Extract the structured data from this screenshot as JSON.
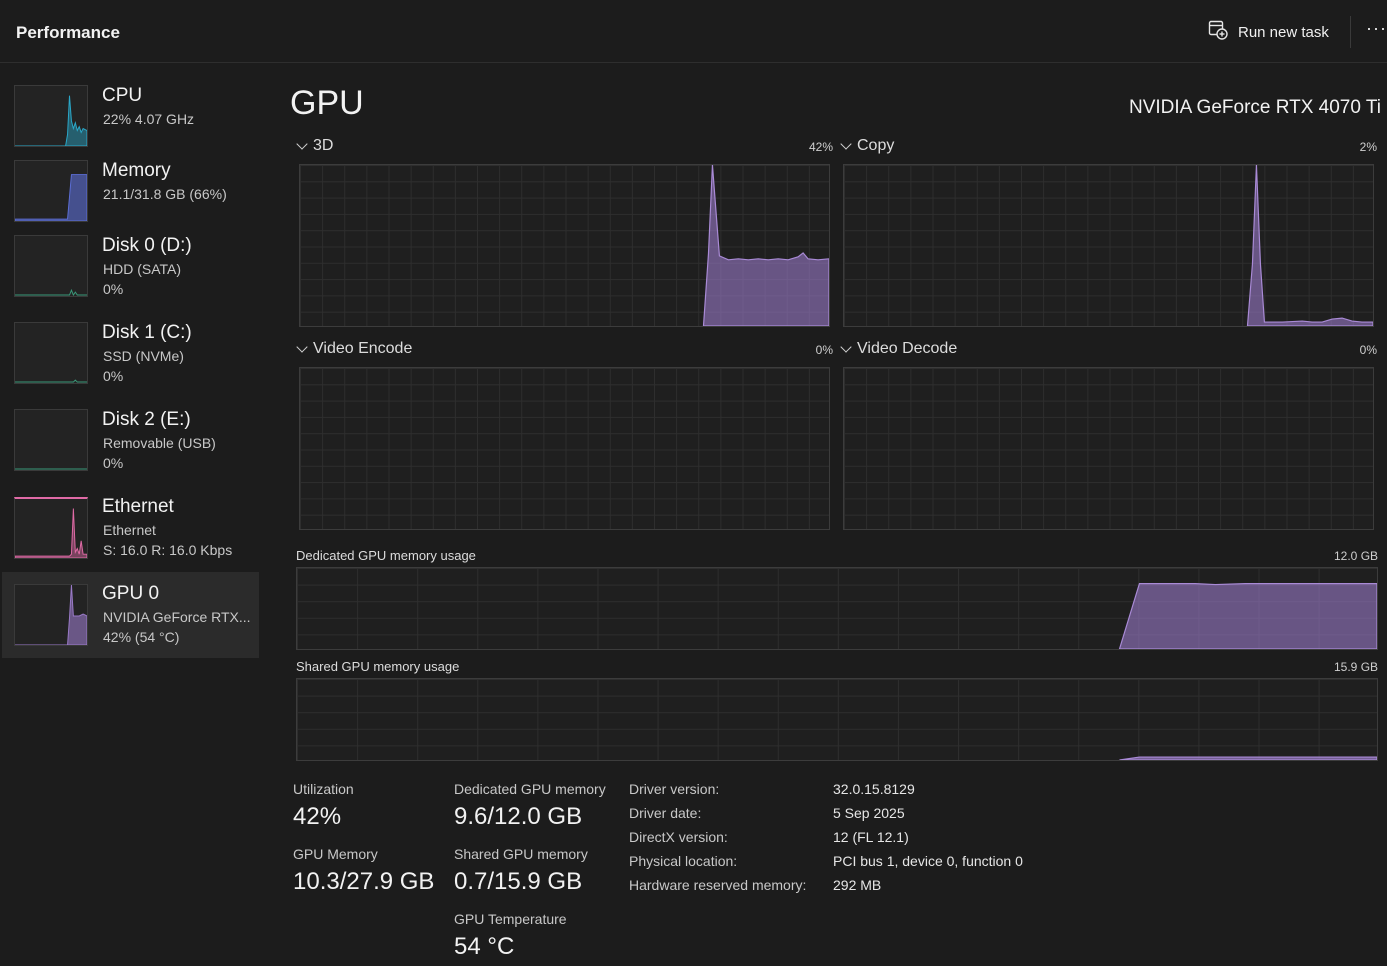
{
  "header": {
    "title": "Performance",
    "run_new_task": "Run new task",
    "more": "···"
  },
  "sidebar": {
    "items": [
      {
        "name": "CPU",
        "line1": "22%  4.07 GHz",
        "line2": "",
        "color": "#2aa8c9"
      },
      {
        "name": "Memory",
        "line1": "21.1/31.8 GB (66%)",
        "line2": "",
        "color": "#5c6ed6"
      },
      {
        "name": "Disk 0 (D:)",
        "line1": "HDD (SATA)",
        "line2": "0%",
        "color": "#3a9a7a"
      },
      {
        "name": "Disk 1 (C:)",
        "line1": "SSD (NVMe)",
        "line2": "0%",
        "color": "#3a9a7a"
      },
      {
        "name": "Disk 2 (E:)",
        "line1": "Removable (USB)",
        "line2": "0%",
        "color": "#3a9a7a"
      },
      {
        "name": "Ethernet",
        "line1": "Ethernet",
        "line2": "S: 16.0  R: 16.0 Kbps",
        "color": "#e06aa6"
      },
      {
        "name": "GPU 0",
        "line1": "NVIDIA GeForce RTX...",
        "line2": "42%  (54 °C)",
        "color": "#9a7ac8"
      }
    ],
    "selected_index": 6
  },
  "main": {
    "title": "GPU",
    "model": "NVIDIA GeForce RTX 4070 Ti",
    "engines": [
      {
        "label": "3D",
        "value": "42%"
      },
      {
        "label": "Copy",
        "value": "2%"
      },
      {
        "label": "Video Encode",
        "value": "0%"
      },
      {
        "label": "Video Decode",
        "value": "0%"
      }
    ],
    "dedicated_chart": {
      "label": "Dedicated GPU memory usage",
      "max": "12.0 GB"
    },
    "shared_chart": {
      "label": "Shared GPU memory usage",
      "max": "15.9 GB"
    },
    "accent_color": "#9a7ac8"
  },
  "stats": {
    "utilization_label": "Utilization",
    "utilization": "42%",
    "gpu_memory_label": "GPU Memory",
    "gpu_memory": "10.3/27.9 GB",
    "dedicated_label": "Dedicated GPU memory",
    "dedicated": "9.6/12.0 GB",
    "shared_label": "Shared GPU memory",
    "shared": "0.7/15.9 GB",
    "temp_label": "GPU Temperature",
    "temp": "54 °C"
  },
  "info": [
    {
      "key": "Driver version:",
      "value": "32.0.15.8129"
    },
    {
      "key": "Driver date:",
      "value": "5 Sep 2025"
    },
    {
      "key": "DirectX version:",
      "value": "12 (FL 12.1)"
    },
    {
      "key": "Physical location:",
      "value": "PCI bus 1, device 0, function 0"
    },
    {
      "key": "Hardware reserved memory:",
      "value": "292 MB"
    }
  ]
}
